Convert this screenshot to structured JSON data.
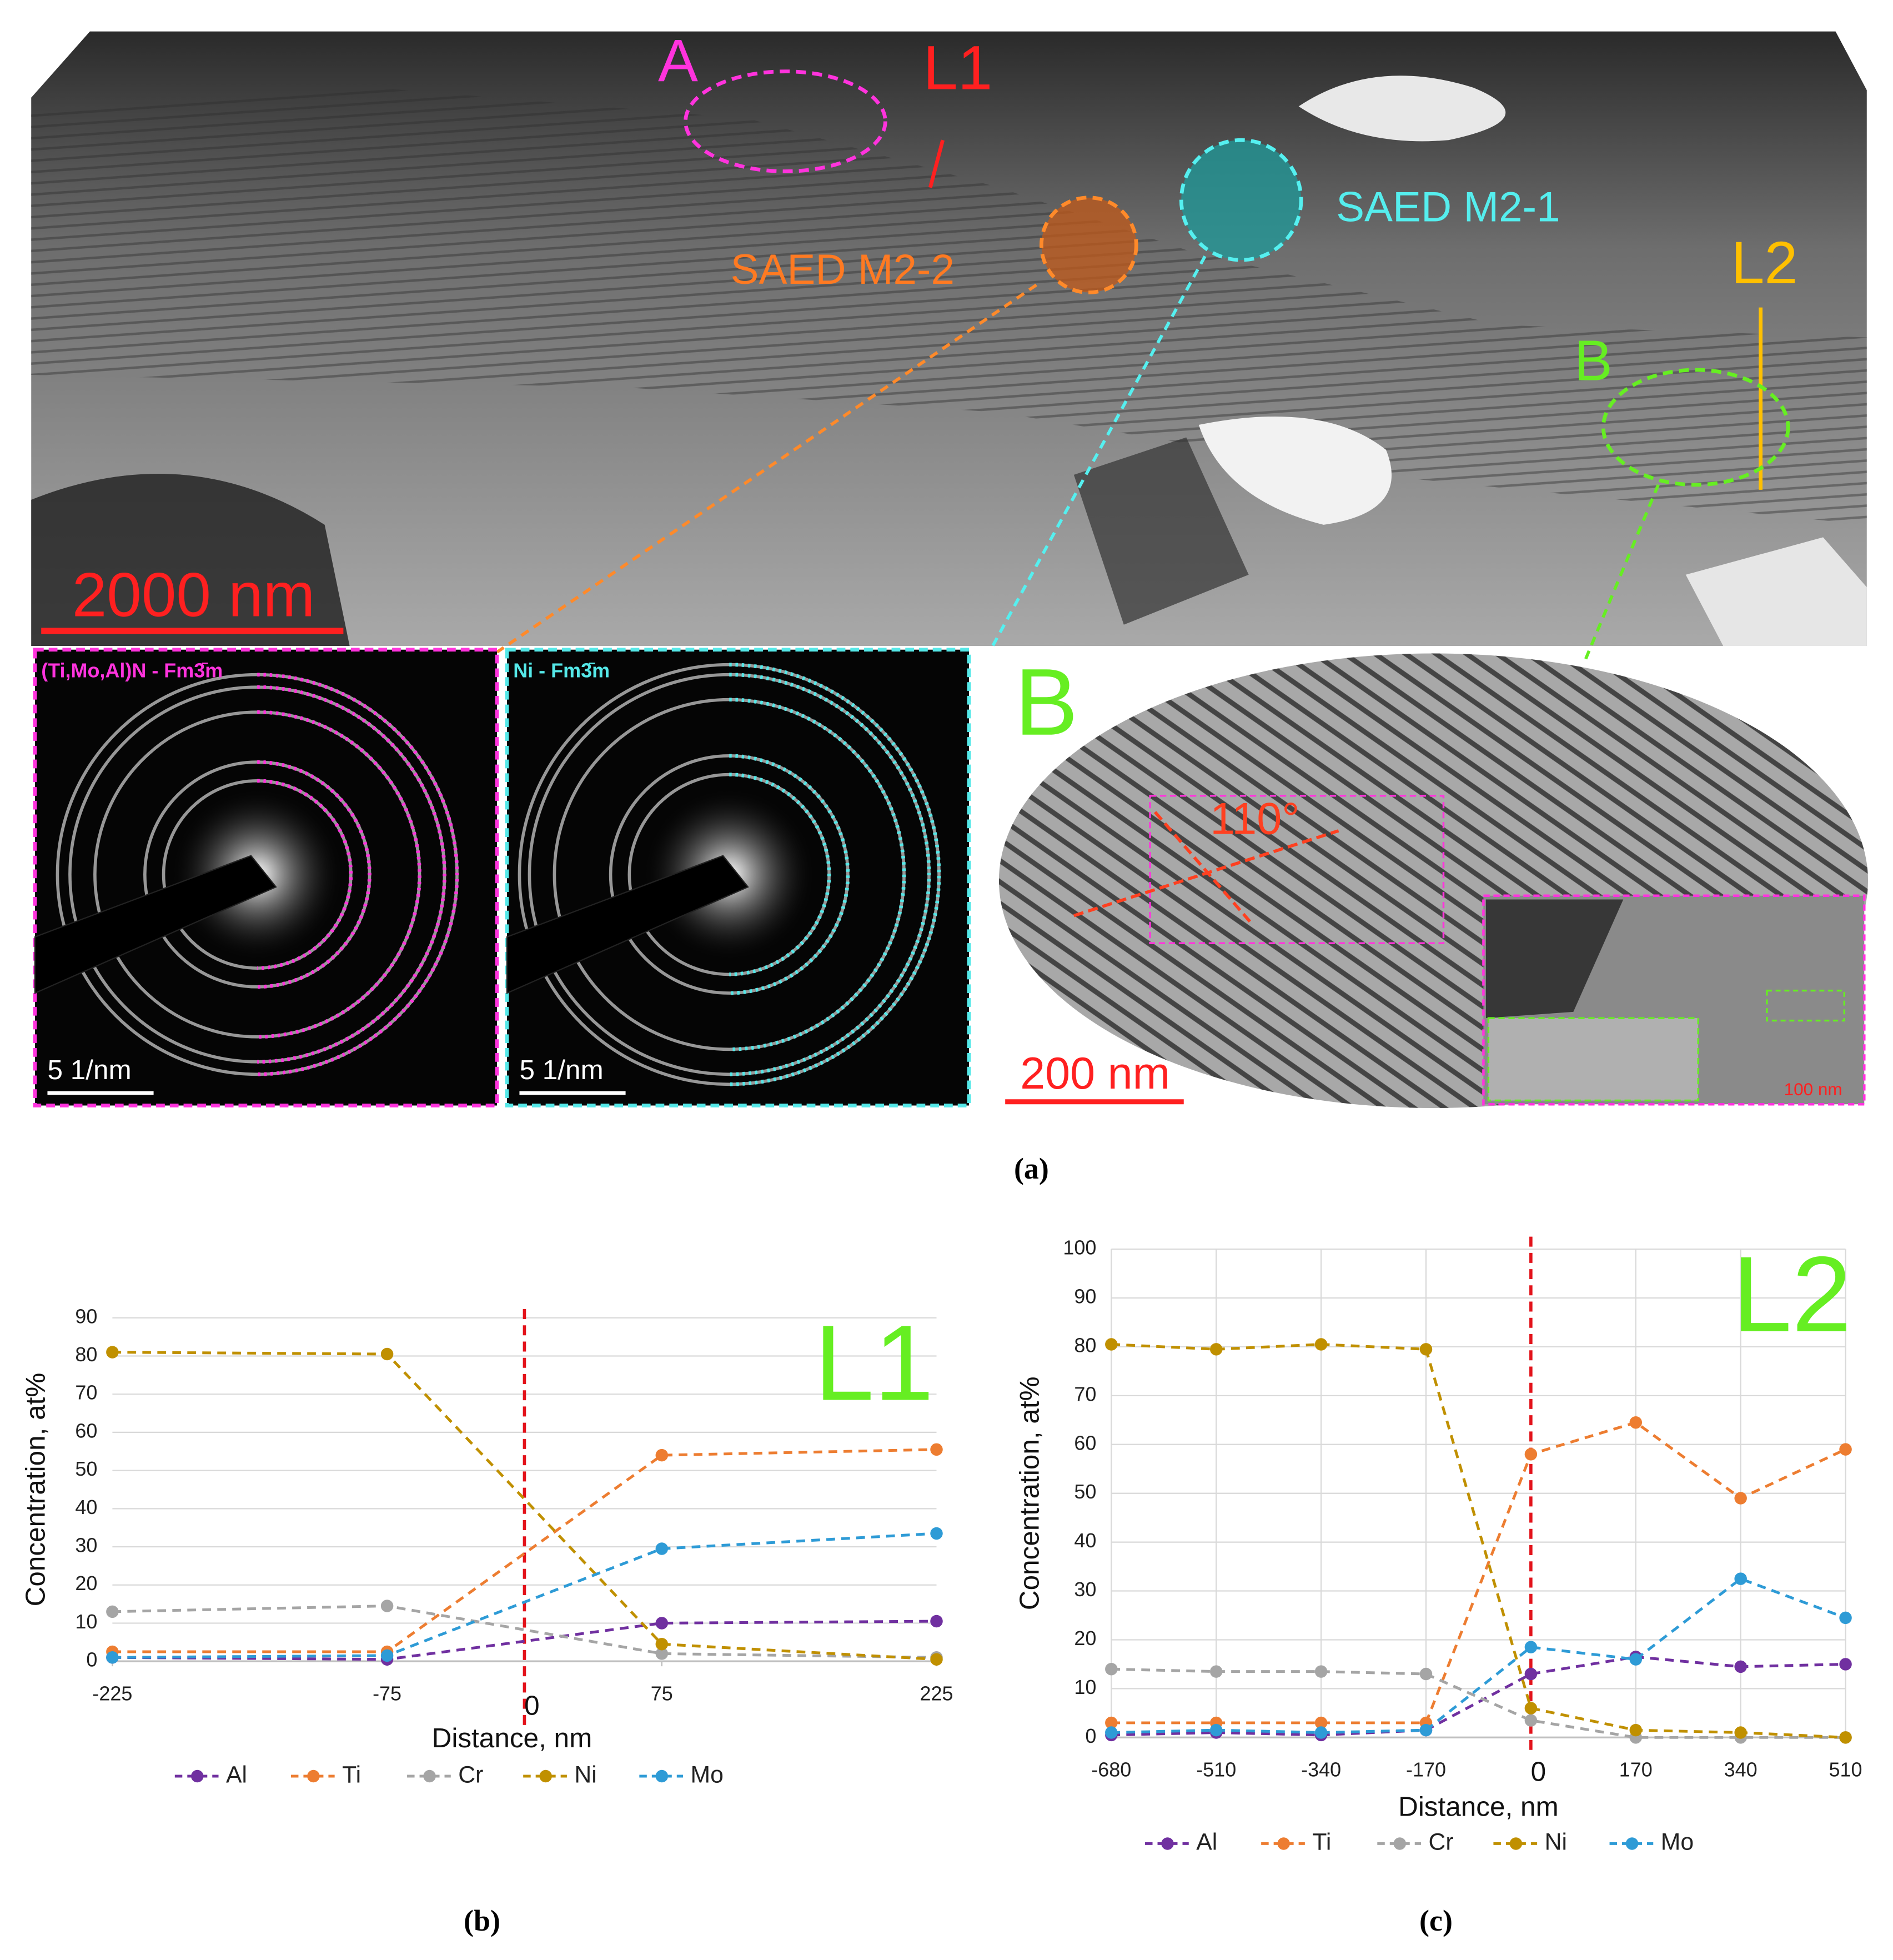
{
  "micrograph": {
    "region_a": "A",
    "line_1": "L1",
    "saed_1": "SAED M2-1",
    "saed_2": "SAED M2-2",
    "line_2": "L2",
    "region_b": "B",
    "scale_bar": "2000 nm",
    "saed_2_phase": "(Ti,Mo,Al)N - Fm3̄m",
    "saed_1_phase": "Ni - Fm3̄m",
    "saed_scale": "5 1/nm",
    "inset_label": "B",
    "angle": "110°",
    "inset_scale": "200 nm",
    "zoom_scale": "100 nm"
  },
  "captions": [
    "(a)",
    "(b)",
    "(c)"
  ],
  "chart_data": [
    {
      "type": "line",
      "annotation": "L1",
      "x_label": "Distance, nm",
      "y_label": "Concentration, at%",
      "x": [
        -225,
        -75,
        75,
        225
      ],
      "xlim": [
        -225,
        225
      ],
      "xticks": [
        -225,
        -75,
        75,
        225
      ],
      "ylim": [
        0,
        90
      ],
      "yticks": [
        0,
        10,
        20,
        30,
        40,
        50,
        60,
        70,
        80,
        90
      ],
      "grid": true,
      "vertical_grid": false,
      "line_style": "dashed",
      "legend": "bottom",
      "marker_line": 0,
      "marker_line_color": "#e3131b",
      "series": [
        {
          "name": "Al",
          "color": "#7030a0",
          "values": [
            1,
            0.5,
            10,
            10.5
          ]
        },
        {
          "name": "Ti",
          "color": "#ed7d31",
          "values": [
            2.5,
            2.5,
            54,
            55.5
          ]
        },
        {
          "name": "Cr",
          "color": "#a5a5a5",
          "values": [
            13,
            14.5,
            2,
            1
          ]
        },
        {
          "name": "Ni",
          "color": "#c09000",
          "values": [
            81,
            80.5,
            4.5,
            0.5
          ]
        },
        {
          "name": "Mo",
          "color": "#2e9bd6",
          "values": [
            1,
            1.5,
            29.5,
            33.5
          ]
        }
      ]
    },
    {
      "type": "line",
      "annotation": "L2",
      "x_label": "Distance, nm",
      "y_label": "Concentration, at%",
      "x": [
        -680,
        -510,
        -340,
        -170,
        0,
        170,
        340,
        510
      ],
      "xlim": [
        -680,
        510
      ],
      "xticks": [
        -680,
        -510,
        -340,
        -170,
        170,
        340,
        510
      ],
      "ylim": [
        0,
        100
      ],
      "yticks": [
        0,
        10,
        20,
        30,
        40,
        50,
        60,
        70,
        80,
        90,
        100
      ],
      "grid": true,
      "vertical_grid": true,
      "line_style": "dashed",
      "legend": "bottom",
      "marker_line": 0,
      "marker_line_color": "#e3131b",
      "series": [
        {
          "name": "Al",
          "color": "#7030a0",
          "values": [
            0.5,
            1,
            0.5,
            1.5,
            13,
            16.5,
            14.5,
            15
          ]
        },
        {
          "name": "Ti",
          "color": "#ed7d31",
          "values": [
            3,
            3,
            3,
            3,
            58,
            64.5,
            49,
            59
          ]
        },
        {
          "name": "Cr",
          "color": "#a5a5a5",
          "values": [
            14,
            13.5,
            13.5,
            13,
            3.5,
            0,
            0,
            0
          ]
        },
        {
          "name": "Ni",
          "color": "#c09000",
          "values": [
            80.5,
            79.5,
            80.5,
            79.5,
            6,
            1.5,
            1,
            0
          ]
        },
        {
          "name": "Mo",
          "color": "#2e9bd6",
          "values": [
            1,
            1.5,
            1,
            1.5,
            18.5,
            16,
            32.5,
            24.5
          ]
        }
      ]
    }
  ]
}
